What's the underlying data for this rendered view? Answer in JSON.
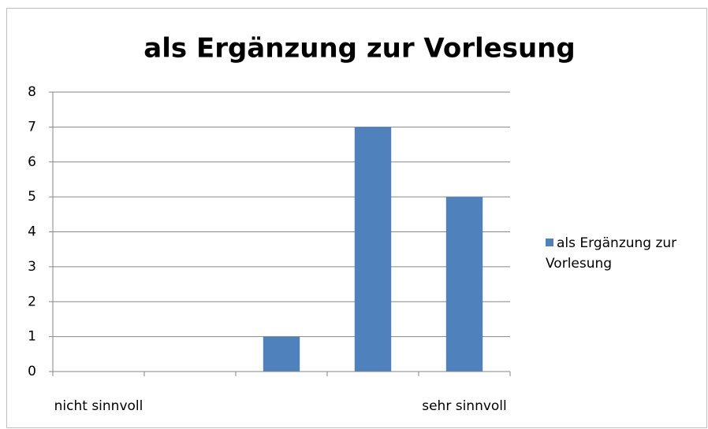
{
  "chart_data": {
    "type": "bar",
    "title": "als Ergänzung zur Vorlesung",
    "categories": [
      "nicht sinnvoll",
      null,
      null,
      null,
      "sehr sinnvoll"
    ],
    "series": [
      {
        "name": "als Ergänzung zur Vorlesung",
        "color": "#4f81bd",
        "values": [
          0,
          0,
          1,
          7,
          5
        ]
      }
    ],
    "ylim": [
      0,
      8
    ],
    "yticks": [
      0,
      1,
      2,
      3,
      4,
      5,
      6,
      7,
      8
    ],
    "grid": true,
    "legend": "right"
  }
}
